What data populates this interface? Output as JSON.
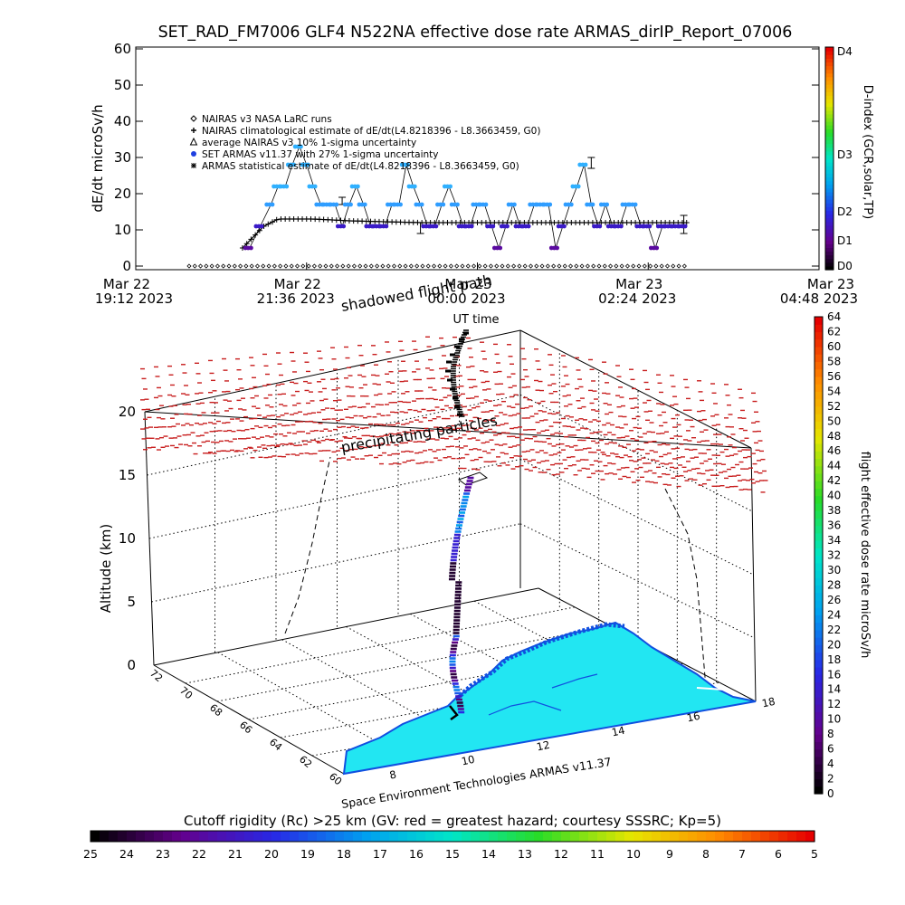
{
  "title": "SET_RAD_FM7006  GLF4 N522NA effective dose rate ARMAS_dirIP_Report_07006",
  "chart_data": [
    {
      "type": "scatter",
      "ylabel": "dE/dt microSv/h",
      "xlabel": "UT time",
      "ylim": [
        0,
        60
      ],
      "yticks": [
        "0",
        "10",
        "20",
        "30",
        "40",
        "50",
        "60"
      ],
      "xticks": [
        {
          "line1": "Mar 22",
          "line2": "19:12 2023"
        },
        {
          "line1": "Mar 22",
          "line2": "21:36 2023"
        },
        {
          "line1": "Mar 23",
          "line2": "00:00 2023"
        },
        {
          "line1": "Mar 23",
          "line2": "02:24 2023"
        },
        {
          "line1": "Mar 23",
          "line2": "04:48 2023"
        }
      ],
      "xrange_hours": [
        0,
        9.6
      ],
      "legend": [
        {
          "symbol": "diamond",
          "label": "NAIRAS v3 NASA LaRC runs"
        },
        {
          "symbol": "plus",
          "label": "NAIRAS climatological estimate of dE/dt(L4.8218396 - L8.3663459, G0)"
        },
        {
          "symbol": "triangle",
          "label": "average NAIRAS v3 10% 1-sigma uncertainty"
        },
        {
          "symbol": "dot",
          "label": "SET ARMAS v11.37 with 27% 1-sigma uncertainty"
        },
        {
          "symbol": "asterisk",
          "label": "ARMAS statistical estimate of dE/dt(L4.8218396 - L8.3663459, G0)"
        }
      ],
      "dindex_axis": {
        "label": "D-index (GCR,solar,TP)",
        "ticks": [
          "D0",
          "D1",
          "D2",
          "D3",
          "D4"
        ]
      },
      "series_armas": {
        "t_hours": [
          1.6,
          1.75,
          1.9,
          2.0,
          2.1,
          2.2,
          2.3,
          2.4,
          2.5,
          2.6,
          2.7,
          2.8,
          2.9,
          3.0,
          3.1,
          3.2,
          3.3,
          3.4,
          3.5,
          3.6,
          3.7,
          3.8,
          3.9,
          4.0,
          4.1,
          4.2,
          4.3,
          4.4,
          4.5,
          4.6,
          4.7,
          4.8,
          4.9,
          5.0,
          5.1,
          5.2,
          5.3,
          5.4,
          5.5,
          5.6,
          5.7,
          5.8,
          5.9,
          6.0,
          6.1,
          6.2,
          6.3,
          6.4,
          6.5,
          6.6,
          6.7,
          6.8,
          6.9,
          7.0,
          7.1,
          7.2,
          7.3,
          7.4,
          7.5,
          7.6,
          7.7
        ],
        "values": [
          5,
          11,
          17,
          22,
          22,
          28,
          33,
          28,
          22,
          17,
          17,
          17,
          11,
          17,
          22,
          17,
          11,
          11,
          11,
          17,
          17,
          28,
          22,
          17,
          11,
          11,
          17,
          22,
          17,
          11,
          11,
          17,
          17,
          11,
          5,
          11,
          17,
          11,
          11,
          17,
          17,
          17,
          5,
          11,
          17,
          22,
          28,
          17,
          11,
          17,
          11,
          11,
          17,
          17,
          11,
          11,
          5,
          11,
          11,
          11,
          11
        ]
      },
      "series_nairas_clim": {
        "t_hours": [
          1.5,
          1.8,
          2.0,
          2.5,
          3.0,
          4.0,
          5.0,
          6.0,
          7.0,
          7.7
        ],
        "values": [
          5,
          11,
          13,
          13,
          12.5,
          12,
          12,
          12,
          12,
          12
        ]
      }
    },
    {
      "type": "scatter",
      "zlabel": "Altitude (km)",
      "zticks": [
        "0",
        "5",
        "10",
        "15",
        "20"
      ],
      "lat_ticks": [
        "72",
        "70",
        "68",
        "66",
        "64",
        "62",
        "60"
      ],
      "lon_ticks": [
        "8",
        "10",
        "12",
        "14",
        "16",
        "18"
      ],
      "annotations": [
        "shadowed flight path",
        "precipitating particles"
      ],
      "colorbar": {
        "label": "flight effective dose rate microSv/h",
        "ticks": [
          "0",
          "2",
          "4",
          "6",
          "8",
          "10",
          "12",
          "14",
          "16",
          "18",
          "20",
          "22",
          "24",
          "26",
          "28",
          "30",
          "32",
          "34",
          "36",
          "38",
          "40",
          "42",
          "44",
          "46",
          "48",
          "50",
          "52",
          "54",
          "56",
          "58",
          "60",
          "62",
          "64"
        ]
      },
      "bottom_colorbar": {
        "label": "Cutoff rigidity (Rc) >25 km (GV: red = greatest hazard; courtesy SSSRC; Kp=5)",
        "ticks": [
          "25",
          "24",
          "23",
          "22",
          "21",
          "20",
          "19",
          "18",
          "17",
          "16",
          "15",
          "14",
          "13",
          "12",
          "11",
          "10",
          "9",
          "8",
          "7",
          "6",
          "5"
        ]
      },
      "credit": "Space Environment Technologies ARMAS v11.37",
      "colors": {
        "particles": "#c81e1e",
        "land": "#22e6f2",
        "coast": "#1050e0"
      }
    }
  ]
}
